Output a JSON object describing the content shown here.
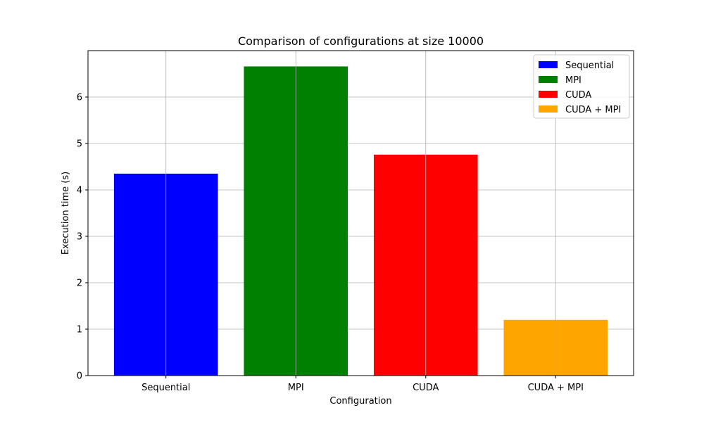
{
  "chart_data": {
    "type": "bar",
    "title": "Comparison of configurations at size 10000",
    "xlabel": "Configuration",
    "ylabel": "Execution time (s)",
    "categories": [
      "Sequential",
      "MPI",
      "CUDA",
      "CUDA + MPI"
    ],
    "values": [
      4.35,
      6.66,
      4.76,
      1.2
    ],
    "colors": [
      "#0000ff",
      "#008000",
      "#ff0000",
      "#ffa500"
    ],
    "ylim": [
      0,
      7
    ],
    "yticks": [
      0,
      1,
      2,
      3,
      4,
      5,
      6
    ],
    "grid": true,
    "legend": {
      "position": "upper right",
      "entries": [
        "Sequential",
        "MPI",
        "CUDA",
        "CUDA + MPI"
      ]
    }
  }
}
